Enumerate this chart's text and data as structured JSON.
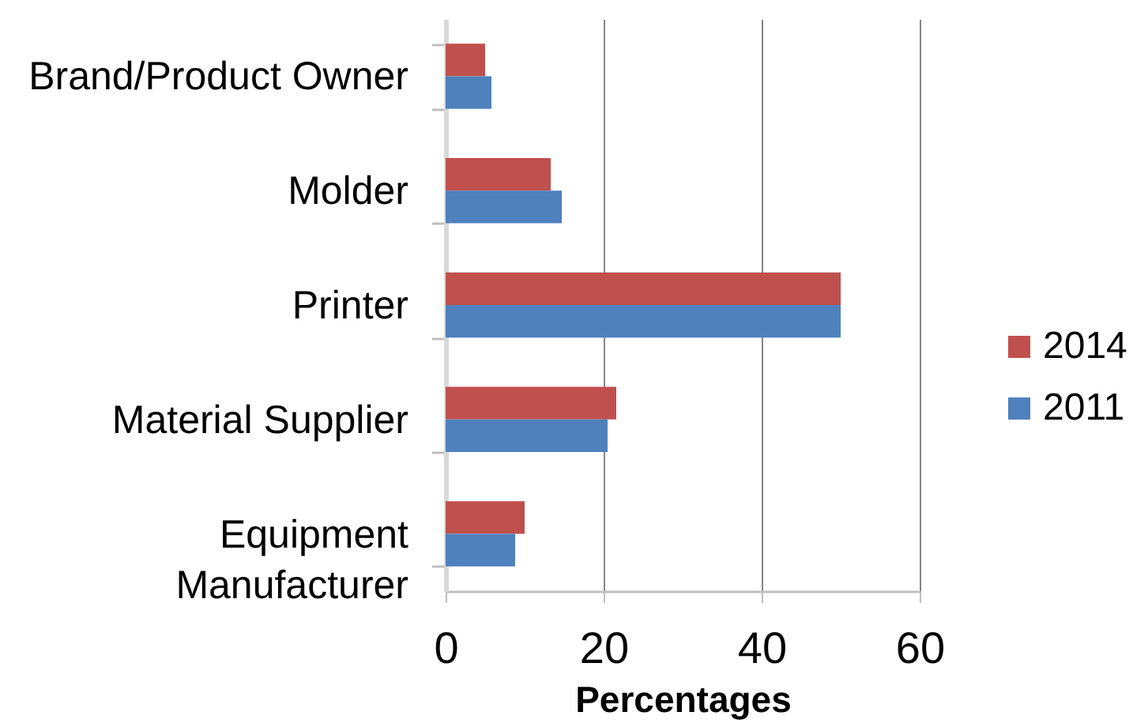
{
  "chart_data": {
    "type": "bar",
    "orientation": "horizontal",
    "categories": [
      "Brand/Product Owner",
      "Molder",
      "Printer",
      "Material Supplier",
      "Equipment Manufacturer"
    ],
    "series": [
      {
        "name": "2014",
        "color": "#c0504d",
        "values": [
          5,
          13.3,
          50,
          21.6,
          10
        ]
      },
      {
        "name": "2011",
        "color": "#4f81bd",
        "values": [
          5.8,
          14.7,
          50,
          20.5,
          8.8
        ]
      }
    ],
    "xlabel": "Percentages",
    "xlim": [
      0,
      60
    ],
    "xticks": [
      0,
      20,
      40,
      60
    ],
    "grid": "x",
    "legend": "right"
  }
}
